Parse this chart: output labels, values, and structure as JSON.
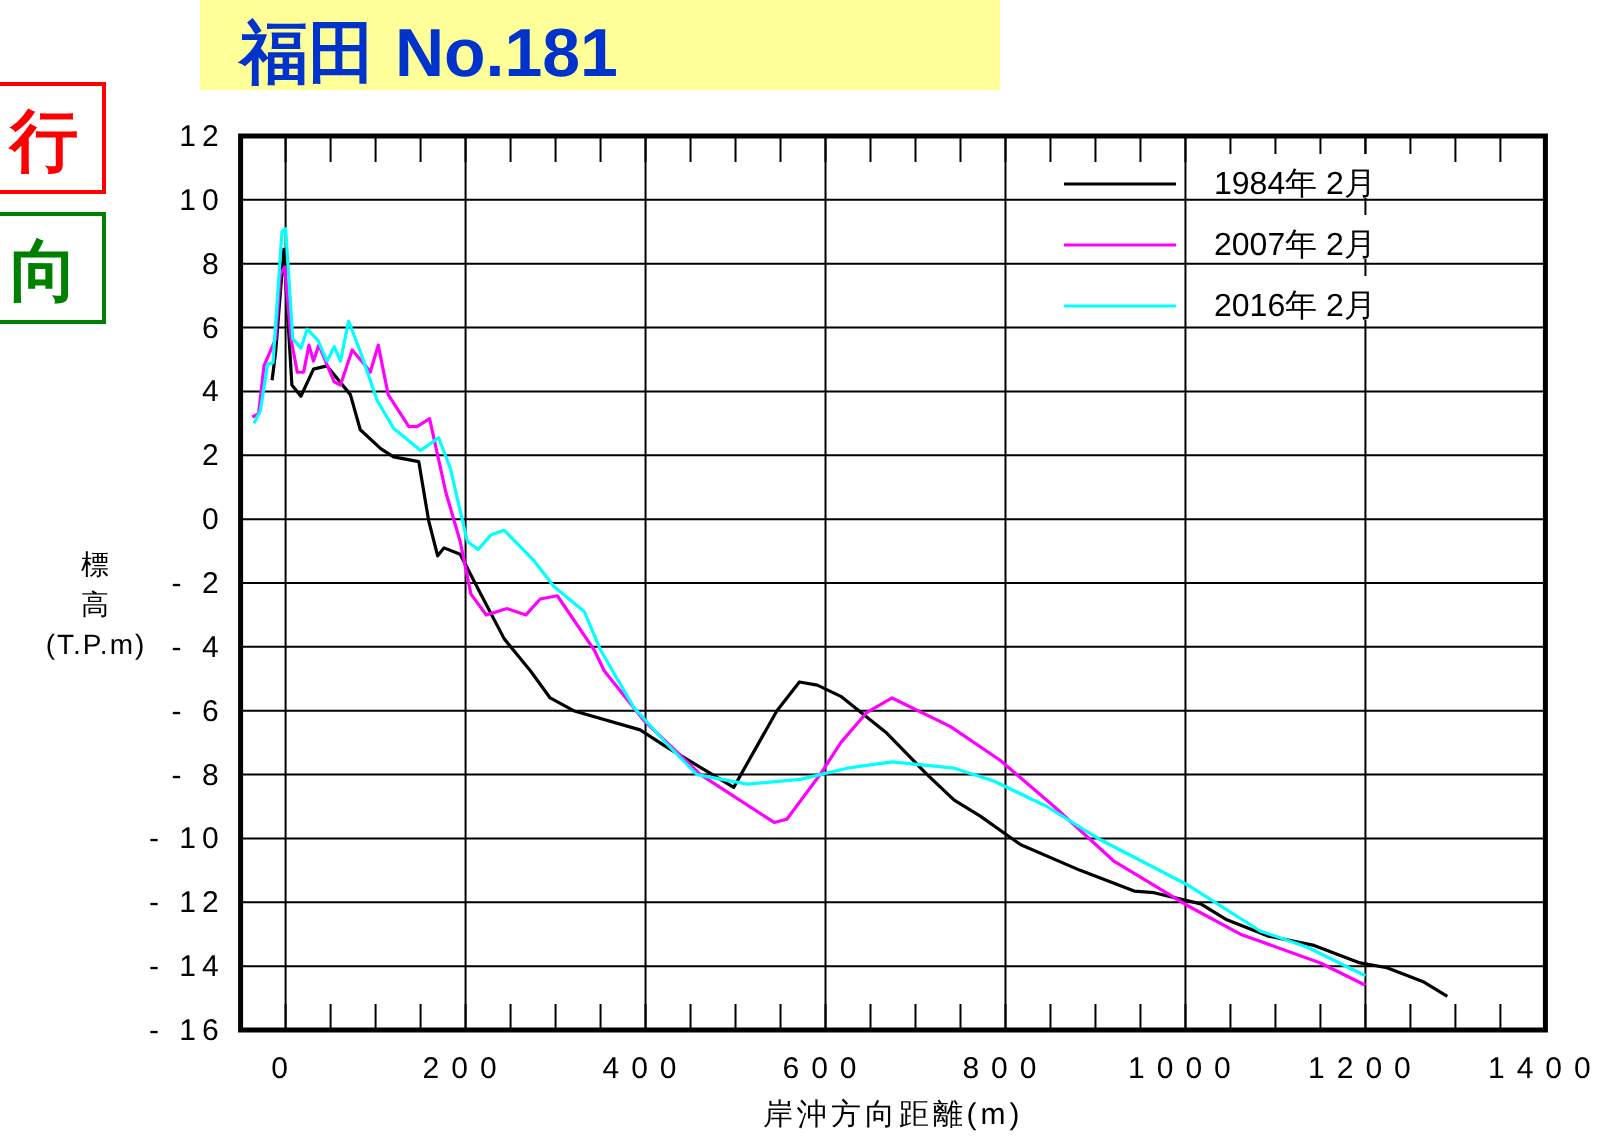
{
  "chart_data": {
    "type": "line",
    "title": "福田 No.181",
    "xlabel": "岸沖方向距離(m)",
    "ylabel": "標高(T.P.m)",
    "annotations": [
      "行",
      "向"
    ],
    "xlim": [
      -50,
      1400
    ],
    "xticks": [
      0,
      200,
      400,
      600,
      800,
      1000,
      1200,
      1400
    ],
    "ylim": [
      -16,
      12
    ],
    "yticks": [
      -16,
      -14,
      -12,
      -10,
      -8,
      -6,
      -4,
      -2,
      0,
      2,
      4,
      6,
      8,
      10,
      12
    ],
    "grid": true,
    "legend": "top right",
    "line_style": "solid",
    "marker": "none",
    "series": [
      {
        "name": "1984年 2月",
        "color": "#000000",
        "x": [
          -15,
          -11,
          -2,
          7,
          17,
          31,
          46,
          72,
          83,
          106,
          120,
          148,
          159,
          169,
          176,
          194,
          217,
          243,
          272,
          294,
          320,
          394,
          424,
          498,
          546,
          571,
          591,
          617,
          668,
          713,
          743,
          772,
          817,
          883,
          943,
          965,
          1017,
          1046,
          1091,
          1143,
          1194,
          1224,
          1265,
          1291
        ],
        "values": [
          4.35,
          5.25,
          8.45,
          4.2,
          3.85,
          4.7,
          4.8,
          3.9,
          2.8,
          2.2,
          1.95,
          1.8,
          -0.05,
          -1.15,
          -0.9,
          -1.1,
          -2.35,
          -3.75,
          -4.75,
          -5.6,
          -6.0,
          -6.6,
          -7.15,
          -8.4,
          -6.0,
          -5.1,
          -5.2,
          -5.55,
          -6.7,
          -8.0,
          -8.8,
          -9.3,
          -10.2,
          -11.0,
          -11.65,
          -11.7,
          -12.05,
          -12.55,
          -13.05,
          -13.35,
          -13.9,
          -14.05,
          -14.5,
          -14.95
        ]
      },
      {
        "name": "2007年 2月",
        "color": "#ff00ff",
        "x": [
          -37,
          -30,
          -24,
          -11,
          -6,
          -1,
          6,
          13,
          20,
          26,
          31,
          37,
          54,
          61,
          74,
          89,
          94,
          103,
          114,
          137,
          146,
          160,
          178,
          194,
          206,
          223,
          246,
          267,
          283,
          302,
          343,
          354,
          398,
          461,
          543,
          557,
          594,
          617,
          646,
          674,
          739,
          794,
          854,
          920,
          1002,
          1061,
          1150,
          1200
        ],
        "values": [
          3.2,
          3.3,
          4.8,
          5.65,
          7.65,
          7.9,
          5.65,
          4.6,
          4.6,
          5.45,
          4.95,
          5.45,
          4.3,
          4.2,
          5.3,
          4.8,
          4.6,
          5.45,
          3.9,
          2.9,
          2.9,
          3.15,
          0.85,
          -0.7,
          -2.35,
          -3.0,
          -2.8,
          -3.0,
          -2.5,
          -2.4,
          -4.1,
          -4.75,
          -6.3,
          -8.0,
          -9.5,
          -9.4,
          -8.0,
          -7.0,
          -6.05,
          -5.6,
          -6.5,
          -7.55,
          -9.0,
          -10.7,
          -12.1,
          -13.0,
          -13.9,
          -14.6
        ]
      },
      {
        "name": "2016年 2月",
        "color": "#00ffff",
        "x": [
          -35,
          -28,
          -20,
          -14,
          -4,
          0,
          8,
          17,
          24,
          36,
          46,
          54,
          61,
          70,
          83,
          102,
          120,
          150,
          170,
          183,
          202,
          214,
          228,
          243,
          276,
          298,
          332,
          350,
          387,
          424,
          457,
          513,
          572,
          624,
          674,
          743,
          787,
          846,
          906,
          1002,
          1083,
          1135,
          1200
        ],
        "values": [
          3.0,
          3.4,
          4.85,
          4.9,
          9.0,
          9.1,
          5.65,
          5.35,
          5.95,
          5.6,
          4.95,
          5.4,
          4.95,
          6.2,
          5.25,
          3.7,
          2.85,
          2.15,
          2.55,
          1.6,
          -0.7,
          -0.95,
          -0.5,
          -0.35,
          -1.3,
          -2.1,
          -2.9,
          -4.1,
          -5.9,
          -7.05,
          -8.0,
          -8.3,
          -8.15,
          -7.8,
          -7.6,
          -7.8,
          -8.2,
          -9.0,
          -10.05,
          -11.45,
          -12.9,
          -13.4,
          -14.3
        ]
      }
    ]
  }
}
